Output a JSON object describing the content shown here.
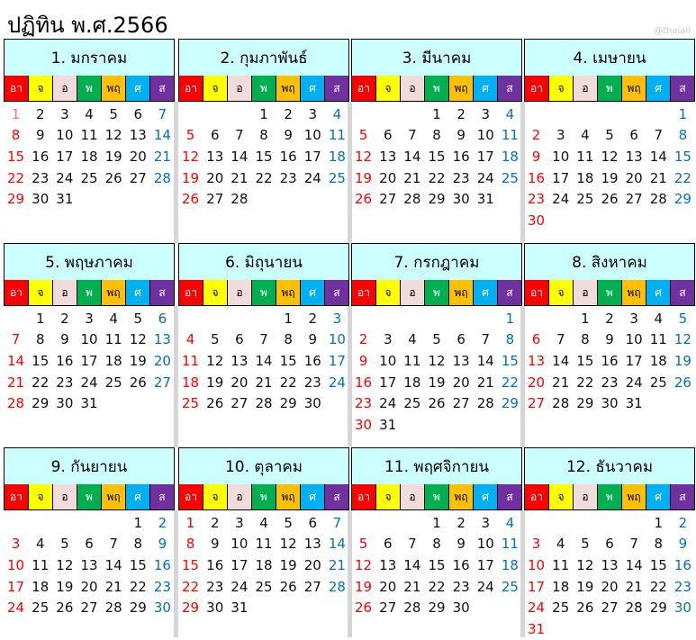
{
  "title": "ปฏิทิน พ.ศ.2566",
  "watermark": "@thaiall",
  "weekdays": [
    {
      "label": "อา",
      "bg": "#ff0000",
      "fg": "#ffffff"
    },
    {
      "label": "จ",
      "bg": "#ffff00",
      "fg": "#000000"
    },
    {
      "label": "อ",
      "bg": "#f2dcdb",
      "fg": "#000000"
    },
    {
      "label": "พ",
      "bg": "#00b050",
      "fg": "#ffffff"
    },
    {
      "label": "พฤ",
      "bg": "#ffc000",
      "fg": "#000000"
    },
    {
      "label": "ศ",
      "bg": "#00b0f0",
      "fg": "#ffffff"
    },
    {
      "label": "ส",
      "bg": "#7030a0",
      "fg": "#ffffff"
    }
  ],
  "colors": {
    "sunday": "#ff0000",
    "saturday": "#0070c0",
    "holiday": "#ff6f9c",
    "header_bg": "#ccffff"
  },
  "months": [
    {
      "name": "1. มกราคม",
      "first_weekday": 0,
      "days": [
        1,
        2,
        3,
        4,
        5,
        6,
        7,
        8,
        9,
        10,
        11,
        12,
        13,
        14,
        15,
        16,
        17,
        18,
        19,
        20,
        21,
        22,
        23,
        24,
        25,
        26,
        27,
        28,
        29,
        30,
        31
      ],
      "holidays": [
        1
      ]
    },
    {
      "name": "2. กุมภาพันธ์",
      "first_weekday": 3,
      "days": [
        1,
        2,
        3,
        4,
        5,
        6,
        7,
        8,
        9,
        10,
        11,
        12,
        13,
        14,
        15,
        16,
        17,
        18,
        19,
        20,
        21,
        22,
        23,
        24,
        25,
        26,
        27,
        28
      ]
    },
    {
      "name": "3. มีนาคม",
      "first_weekday": 3,
      "days": [
        1,
        2,
        3,
        4,
        5,
        6,
        7,
        8,
        9,
        10,
        11,
        12,
        13,
        14,
        15,
        16,
        17,
        18,
        19,
        20,
        21,
        22,
        23,
        24,
        25,
        26,
        27,
        28,
        29,
        30,
        31
      ]
    },
    {
      "name": "4. เมษายน",
      "first_weekday": 6,
      "days": [
        1,
        2,
        3,
        4,
        5,
        6,
        7,
        8,
        9,
        10,
        11,
        12,
        13,
        14,
        15,
        16,
        17,
        18,
        19,
        20,
        21,
        22,
        23,
        24,
        25,
        26,
        27,
        28,
        29,
        30
      ]
    },
    {
      "name": "5. พฤษภาคม",
      "first_weekday": 1,
      "days": [
        1,
        2,
        3,
        4,
        5,
        6,
        7,
        8,
        9,
        10,
        11,
        12,
        13,
        14,
        15,
        16,
        17,
        18,
        19,
        20,
        21,
        22,
        23,
        24,
        25,
        26,
        27,
        28,
        29,
        30,
        31
      ]
    },
    {
      "name": "6. มิถุนายน",
      "first_weekday": 4,
      "days": [
        1,
        2,
        3,
        4,
        5,
        6,
        7,
        8,
        9,
        10,
        11,
        12,
        13,
        14,
        15,
        16,
        17,
        18,
        19,
        20,
        21,
        22,
        23,
        24,
        25,
        26,
        27,
        28,
        29,
        30
      ]
    },
    {
      "name": "7. กรกฎาคม",
      "first_weekday": 6,
      "days": [
        1,
        2,
        3,
        4,
        5,
        6,
        7,
        8,
        9,
        10,
        11,
        12,
        13,
        14,
        15,
        16,
        17,
        18,
        19,
        20,
        21,
        22,
        23,
        24,
        25,
        26,
        27,
        28,
        29,
        30,
        31
      ]
    },
    {
      "name": "8. สิงหาคม",
      "first_weekday": 2,
      "days": [
        1,
        2,
        3,
        4,
        5,
        6,
        7,
        8,
        9,
        10,
        11,
        12,
        13,
        14,
        15,
        16,
        17,
        18,
        19,
        20,
        21,
        22,
        23,
        24,
        25,
        26,
        27,
        28,
        29,
        30,
        31
      ]
    },
    {
      "name": "9. กันยายน",
      "first_weekday": 5,
      "days": [
        1,
        2,
        3,
        4,
        5,
        6,
        7,
        8,
        9,
        10,
        11,
        12,
        13,
        14,
        15,
        16,
        17,
        18,
        19,
        20,
        21,
        22,
        23,
        24,
        25,
        26,
        27,
        28,
        29,
        30
      ]
    },
    {
      "name": "10. ตุลาคม",
      "first_weekday": 0,
      "days": [
        1,
        2,
        3,
        4,
        5,
        6,
        7,
        8,
        9,
        10,
        11,
        12,
        13,
        14,
        15,
        16,
        17,
        18,
        19,
        20,
        21,
        22,
        23,
        24,
        25,
        26,
        27,
        28,
        29,
        30,
        31
      ]
    },
    {
      "name": "11. พฤศจิกายน",
      "first_weekday": 3,
      "days": [
        1,
        2,
        3,
        4,
        5,
        6,
        7,
        8,
        9,
        10,
        11,
        12,
        13,
        14,
        15,
        16,
        17,
        18,
        19,
        20,
        21,
        22,
        23,
        24,
        25,
        26,
        27,
        28,
        29,
        30
      ]
    },
    {
      "name": "12. ธันวาคม",
      "first_weekday": 5,
      "days": [
        1,
        2,
        3,
        4,
        5,
        6,
        7,
        8,
        9,
        10,
        11,
        12,
        13,
        14,
        15,
        16,
        17,
        18,
        19,
        20,
        21,
        22,
        23,
        24,
        25,
        26,
        27,
        28,
        29,
        30,
        31
      ]
    }
  ]
}
